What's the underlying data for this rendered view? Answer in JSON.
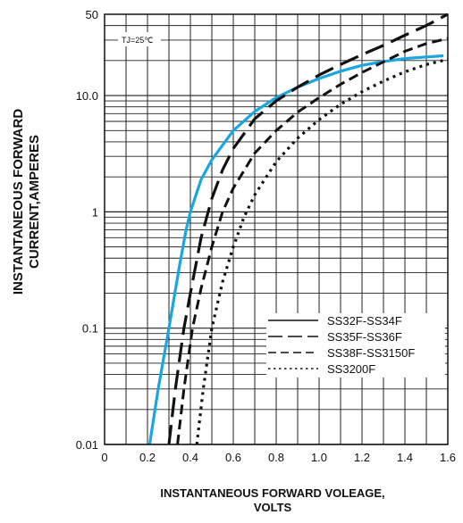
{
  "chart_data": {
    "type": "line",
    "xlabel": "INSTANTANEOUS FORWARD VOLEAGE,",
    "xlabel_line2": "VOLTS",
    "ylabel": "INSTANTANEOUS FORWARD",
    "ylabel_line2": "CURRENT,AMPERES",
    "xlim": [
      0,
      1.6
    ],
    "ylim": [
      0.01,
      50
    ],
    "y_scale": "log",
    "grid": true,
    "x_ticks": [
      "0",
      "0.2",
      "0.4",
      "0.6",
      "0.8",
      "1.0",
      "1.2",
      "1.4",
      "1.6"
    ],
    "y_ticks": [
      {
        "value": 0.01,
        "label": "0.01"
      },
      {
        "value": 0.1,
        "label": "0.1"
      },
      {
        "value": 1,
        "label": "1"
      },
      {
        "value": 10,
        "label": "10.0"
      },
      {
        "value": 50,
        "label": "50"
      }
    ],
    "annotation": "TJ=25℃",
    "legend_position": "lower-right",
    "series": [
      {
        "name": "SS32F-SS34F",
        "style": "solid",
        "color": "#1aa6e0",
        "x": [
          0.21,
          0.25,
          0.3,
          0.35,
          0.38,
          0.4,
          0.45,
          0.5,
          0.6,
          0.7,
          0.8,
          0.9,
          1.0,
          1.1,
          1.2,
          1.3,
          1.4,
          1.5,
          1.58
        ],
        "y": [
          0.01,
          0.03,
          0.1,
          0.35,
          0.7,
          1.0,
          1.9,
          2.8,
          5.0,
          7.3,
          9.6,
          11.8,
          14.0,
          16.2,
          18.2,
          19.6,
          20.8,
          21.5,
          22.0
        ]
      },
      {
        "name": "SS35F-SS36F",
        "style": "long-dash",
        "color": "#111111",
        "x": [
          0.3,
          0.33,
          0.37,
          0.4,
          0.45,
          0.5,
          0.55,
          0.6,
          0.7,
          0.8,
          0.9,
          1.0,
          1.1,
          1.2,
          1.3,
          1.4,
          1.5,
          1.6
        ],
        "y": [
          0.01,
          0.03,
          0.1,
          0.2,
          0.6,
          1.3,
          2.3,
          3.5,
          6.3,
          9.0,
          11.8,
          15.0,
          18.5,
          22.5,
          27.0,
          33.0,
          40.0,
          50.0
        ]
      },
      {
        "name": "SS38F-SS3150F",
        "style": "dash",
        "color": "#111111",
        "x": [
          0.34,
          0.37,
          0.41,
          0.45,
          0.5,
          0.55,
          0.6,
          0.7,
          0.8,
          0.9,
          1.0,
          1.1,
          1.2,
          1.3,
          1.4,
          1.5,
          1.6
        ],
        "y": [
          0.01,
          0.03,
          0.1,
          0.22,
          0.5,
          1.0,
          1.6,
          3.2,
          5.0,
          7.2,
          9.6,
          12.5,
          15.8,
          19.5,
          24.0,
          28.0,
          31.0
        ]
      },
      {
        "name": "SS3200F",
        "style": "dotted",
        "color": "#111111",
        "x": [
          0.43,
          0.46,
          0.5,
          0.55,
          0.6,
          0.65,
          0.7,
          0.8,
          0.9,
          1.0,
          1.1,
          1.2,
          1.3,
          1.4,
          1.5,
          1.6
        ],
        "y": [
          0.01,
          0.03,
          0.1,
          0.25,
          0.5,
          0.9,
          1.4,
          2.7,
          4.3,
          6.2,
          8.4,
          10.8,
          13.3,
          16.0,
          18.5,
          20.5
        ]
      }
    ]
  }
}
